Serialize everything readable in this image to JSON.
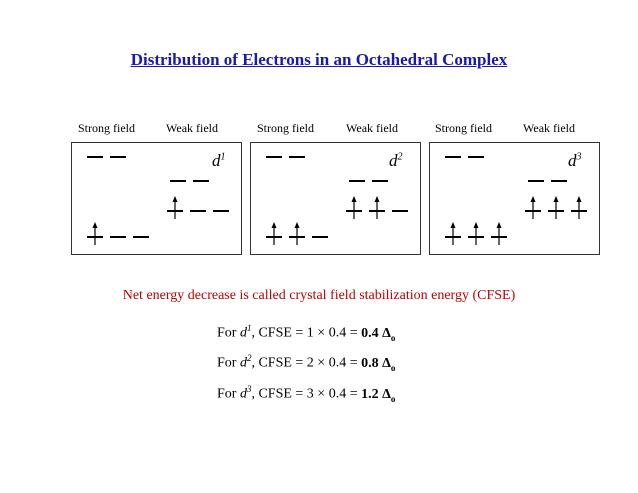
{
  "title": "Distribution of Electrons in an Octahedral Complex",
  "panels": [
    {
      "strong_label": "Strong field",
      "weak_label": "Weak field",
      "d_base": "d",
      "d_sup": "1",
      "electrons": 1
    },
    {
      "strong_label": "Strong field",
      "weak_label": "Weak field",
      "d_base": "d",
      "d_sup": "2",
      "electrons": 2
    },
    {
      "strong_label": "Strong field",
      "weak_label": "Weak field",
      "d_base": "d",
      "d_sup": "3",
      "electrons": 3
    }
  ],
  "note": "Net energy decrease is called crystal field stabilization energy (CFSE)",
  "equations": [
    {
      "pre": "For ",
      "d": "d",
      "sup": "1",
      "mid": ", CFSE = 1 × 0.4 = ",
      "value": "0.4 Δ",
      "sub": "o"
    },
    {
      "pre": "For ",
      "d": "d",
      "sup": "2",
      "mid": ", CFSE = 2 × 0.4 = ",
      "value": "0.8 Δ",
      "sub": "o"
    },
    {
      "pre": "For ",
      "d": "d",
      "sup": "3",
      "mid": ", CFSE = 3 × 0.4 = ",
      "value": "1.2 Δ",
      "sub": "o"
    }
  ]
}
